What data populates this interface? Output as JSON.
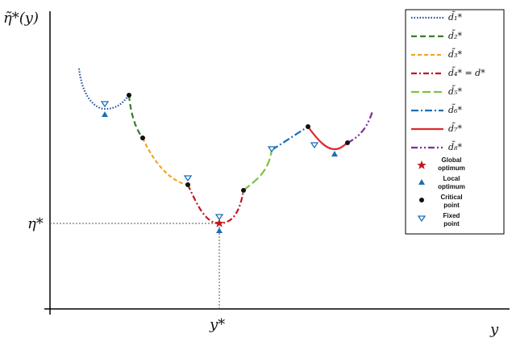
{
  "axes": {
    "y_label": "η̃*(y)",
    "x_label": "y",
    "y_marker": "η*",
    "x_marker": "y*"
  },
  "legend": {
    "curves": [
      "d̃₁*",
      "d̃₂*",
      "d̃₃*",
      "d̃₄* = d*",
      "d̃₅*",
      "d̃₆*",
      "d̃₇*",
      "d̃₈*"
    ],
    "symbols": [
      [
        "Global",
        "optimum"
      ],
      [
        "Local",
        "optimum"
      ],
      [
        "Critical",
        "point"
      ],
      [
        "Fixed",
        "point"
      ]
    ]
  }
}
